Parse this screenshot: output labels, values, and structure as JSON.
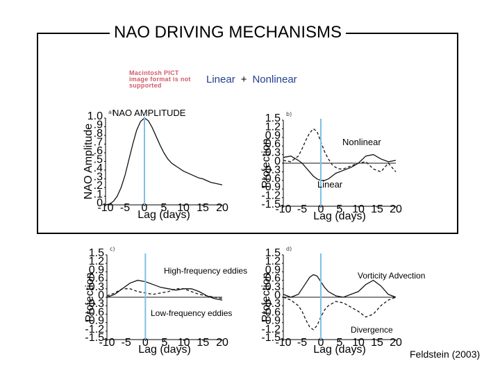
{
  "title": "NAO DRIVING MECHANISMS",
  "pict_notice": "Macintosh PICT image format is not supported",
  "equation": {
    "linear": "Linear",
    "plus": "+",
    "nonlinear": "Nonlinear"
  },
  "credit": "Feldstein (2003)",
  "colors": {
    "marker_line": "#7fbfe6",
    "frame": "#000000",
    "linear_text": "#1f3f8f"
  },
  "chart_data": [
    {
      "type": "line",
      "panel": "a)",
      "label": "NAO AMPLITUDE",
      "xlabel": "Lag (days)",
      "ylabel": "NAO Amplitude",
      "xlim": [
        -10,
        20
      ],
      "ylim": [
        0,
        1.0
      ],
      "marker_x": 0,
      "xticks": [
        "-10",
        "-5",
        "0",
        "5",
        "10",
        "15",
        "20"
      ],
      "yticks": [
        "0",
        ".1",
        ".2",
        ".3",
        ".4",
        ".5",
        ".6",
        ".7",
        ".8",
        ".9",
        "1.0"
      ],
      "series": [
        {
          "style": "solid",
          "x": [
            -10,
            -9,
            -8,
            -7,
            -6,
            -5,
            -4,
            -3,
            -2,
            -1,
            0,
            1,
            2,
            3,
            4,
            5,
            6,
            7,
            8,
            9,
            10,
            11,
            12,
            13,
            14,
            15,
            16,
            17,
            18,
            19,
            20
          ],
          "y": [
            0.0,
            0.01,
            0.04,
            0.1,
            0.2,
            0.34,
            0.52,
            0.7,
            0.86,
            0.96,
            1.0,
            0.97,
            0.89,
            0.79,
            0.69,
            0.6,
            0.53,
            0.48,
            0.45,
            0.42,
            0.39,
            0.37,
            0.35,
            0.33,
            0.31,
            0.3,
            0.28,
            0.26,
            0.25,
            0.24,
            0.23
          ]
        }
      ]
    },
    {
      "type": "line",
      "panel": "b)",
      "ylabel": "Projection",
      "xlabel": "Lag (days)",
      "xlim": [
        -10,
        20
      ],
      "ylim": [
        -1.5,
        1.5
      ],
      "marker_x": 0,
      "xticks": [
        "-10",
        "-5",
        "0",
        "5",
        "10",
        "15",
        "20"
      ],
      "yticks": [
        "-1.5",
        "-1.2",
        "-0.9",
        "-0.6",
        "-0.3",
        "0",
        "0.3",
        "0.6",
        "0.9",
        "1.2",
        "1.5"
      ],
      "annotations": {
        "nonlinear": "Nonlinear",
        "linear": "Linear"
      },
      "series": [
        {
          "style": "dashed",
          "x": [
            -10,
            -8,
            -6,
            -5,
            -4,
            -3,
            -2,
            -1,
            0,
            1,
            2,
            3,
            4,
            5,
            6,
            8,
            10,
            12,
            14,
            16,
            18,
            20
          ],
          "y": [
            0.1,
            0.05,
            0.25,
            0.5,
            0.8,
            1.05,
            1.2,
            1.1,
            0.75,
            0.4,
            0.15,
            -0.05,
            -0.15,
            -0.2,
            -0.2,
            -0.1,
            0.0,
            0.05,
            -0.2,
            -0.3,
            0.0,
            -0.3
          ]
        },
        {
          "style": "solid",
          "x": [
            -10,
            -8,
            -6,
            -5,
            -4,
            -3,
            -2,
            -1,
            0,
            1,
            2,
            3,
            4,
            6,
            8,
            10,
            12,
            14,
            16,
            18,
            20
          ],
          "y": [
            0.2,
            0.25,
            0.1,
            0.0,
            -0.15,
            -0.3,
            -0.45,
            -0.55,
            -0.6,
            -0.6,
            -0.55,
            -0.45,
            -0.35,
            -0.25,
            -0.15,
            0.0,
            0.25,
            0.3,
            0.15,
            0.05,
            0.1
          ]
        },
        {
          "style": "thin",
          "x": [
            -10,
            20
          ],
          "y": [
            0.0,
            0.0
          ]
        }
      ]
    },
    {
      "type": "line",
      "panel": "c)",
      "ylabel": "Projection",
      "xlabel": "Lag (days)",
      "xlim": [
        -10,
        20
      ],
      "ylim": [
        -1.5,
        1.5
      ],
      "marker_x": 0,
      "xticks": [
        "-10",
        "-5",
        "0",
        "5",
        "10",
        "15",
        "20"
      ],
      "yticks": [
        "-1.5",
        "-1.2",
        "-0.9",
        "-0.6",
        "-0.3",
        "0",
        "0.3",
        "0.6",
        "0.9",
        "1.2",
        "1.5"
      ],
      "annotations": {
        "high": "High-frequency eddies",
        "low": "Low-frequency eddies"
      },
      "series": [
        {
          "style": "solid",
          "x": [
            -10,
            -8,
            -6,
            -4,
            -2,
            0,
            2,
            4,
            6,
            8,
            10,
            12,
            14,
            16,
            18,
            20
          ],
          "y": [
            0.0,
            0.1,
            0.3,
            0.5,
            0.6,
            0.55,
            0.45,
            0.35,
            0.3,
            0.25,
            0.3,
            0.3,
            0.2,
            0.05,
            -0.05,
            -0.1
          ]
        },
        {
          "style": "dashed",
          "x": [
            -10,
            -8,
            -6,
            -4,
            -2,
            0,
            2,
            4,
            6,
            8,
            10,
            12,
            14,
            16,
            18,
            20
          ],
          "y": [
            0.05,
            0.15,
            0.3,
            0.3,
            0.2,
            0.15,
            0.1,
            0.15,
            0.2,
            0.3,
            0.3,
            0.2,
            0.1,
            0.05,
            0.0,
            -0.05
          ]
        },
        {
          "style": "thin",
          "x": [
            -10,
            20
          ],
          "y": [
            0.0,
            0.0
          ]
        }
      ]
    },
    {
      "type": "line",
      "panel": "d)",
      "ylabel": "Projection",
      "xlabel": "Lag (days)",
      "xlim": [
        -10,
        20
      ],
      "ylim": [
        -1.5,
        1.5
      ],
      "marker_x": 0,
      "xticks": [
        "-10",
        "-5",
        "0",
        "5",
        "10",
        "15",
        "20"
      ],
      "yticks": [
        "-1.5",
        "-1.2",
        "-0.9",
        "-0.6",
        "-0.3",
        "0",
        "0.3",
        "0.6",
        "0.9",
        "1.2",
        "1.5"
      ],
      "annotations": {
        "vorticity": "Vorticity Advection",
        "divergence": "Divergence"
      },
      "series": [
        {
          "style": "solid",
          "x": [
            -10,
            -8,
            -6,
            -5,
            -4,
            -3,
            -2,
            -1,
            0,
            1,
            2,
            4,
            6,
            8,
            10,
            12,
            14,
            16,
            18,
            20
          ],
          "y": [
            0.1,
            0.0,
            0.1,
            0.3,
            0.5,
            0.7,
            0.8,
            0.75,
            0.55,
            0.35,
            0.2,
            0.05,
            0.0,
            0.1,
            0.2,
            0.45,
            0.6,
            0.4,
            0.1,
            0.0
          ]
        },
        {
          "style": "dashed",
          "x": [
            -10,
            -8,
            -6,
            -5,
            -4,
            -3,
            -2,
            -1,
            0,
            1,
            2,
            4,
            6,
            8,
            10,
            12,
            14,
            16,
            18,
            20
          ],
          "y": [
            0.0,
            -0.1,
            -0.3,
            -0.5,
            -0.8,
            -1.05,
            -1.15,
            -1.0,
            -0.7,
            -0.45,
            -0.3,
            -0.15,
            -0.2,
            -0.35,
            -0.5,
            -0.7,
            -0.6,
            -0.3,
            -0.1,
            0.0
          ]
        },
        {
          "style": "thin",
          "x": [
            -10,
            20
          ],
          "y": [
            0.0,
            0.0
          ]
        }
      ]
    }
  ]
}
